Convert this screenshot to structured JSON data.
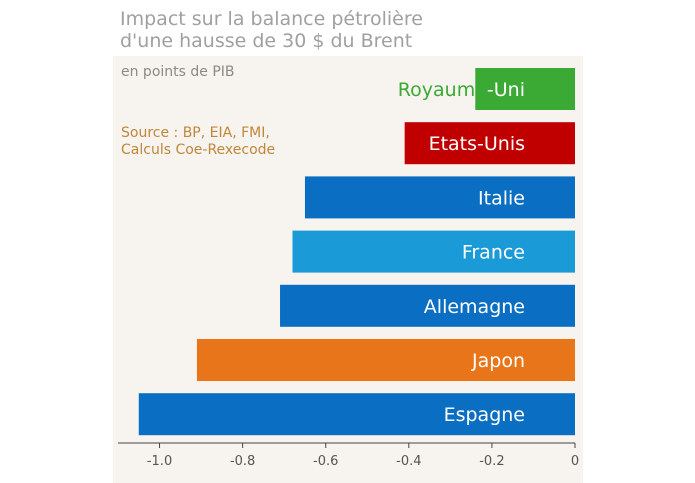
{
  "chart_data": {
    "type": "bar",
    "orientation": "horizontal",
    "title_lines": [
      "Impact sur la balance pétrolière",
      "d'une hausse de 30 $ du Brent"
    ],
    "unit_note": "en points de PIB",
    "source_lines": [
      "Source : BP, EIA, FMI,",
      "Calculs Coe-Rexecode"
    ],
    "categories": [
      "Royaume-Uni",
      "Etats-Unis",
      "Italie",
      "France",
      "Allemagne",
      "Japon",
      "Espagne"
    ],
    "label_parts": [
      [
        "Royaume",
        "-Uni"
      ],
      [
        "Etats-Unis"
      ],
      [
        "Italie"
      ],
      [
        "France"
      ],
      [
        "Allemagne"
      ],
      [
        "Japon"
      ],
      [
        "Espagne"
      ]
    ],
    "values": [
      -0.24,
      -0.41,
      -0.65,
      -0.68,
      -0.71,
      -0.91,
      -1.05
    ],
    "colors": [
      "#3aaa35",
      "#c00000",
      "#0a6fc2",
      "#1a9ad6",
      "#0a6fc2",
      "#e8751a",
      "#0a6fc2"
    ],
    "xlim": [
      -1.1,
      0
    ],
    "ticks": [
      -1.0,
      -0.8,
      -0.6,
      -0.4,
      -0.2,
      0
    ],
    "tick_labels": [
      "-1.0",
      "-0.8",
      "-0.6",
      "-0.4",
      "-0.2",
      "0"
    ],
    "grid": false
  }
}
